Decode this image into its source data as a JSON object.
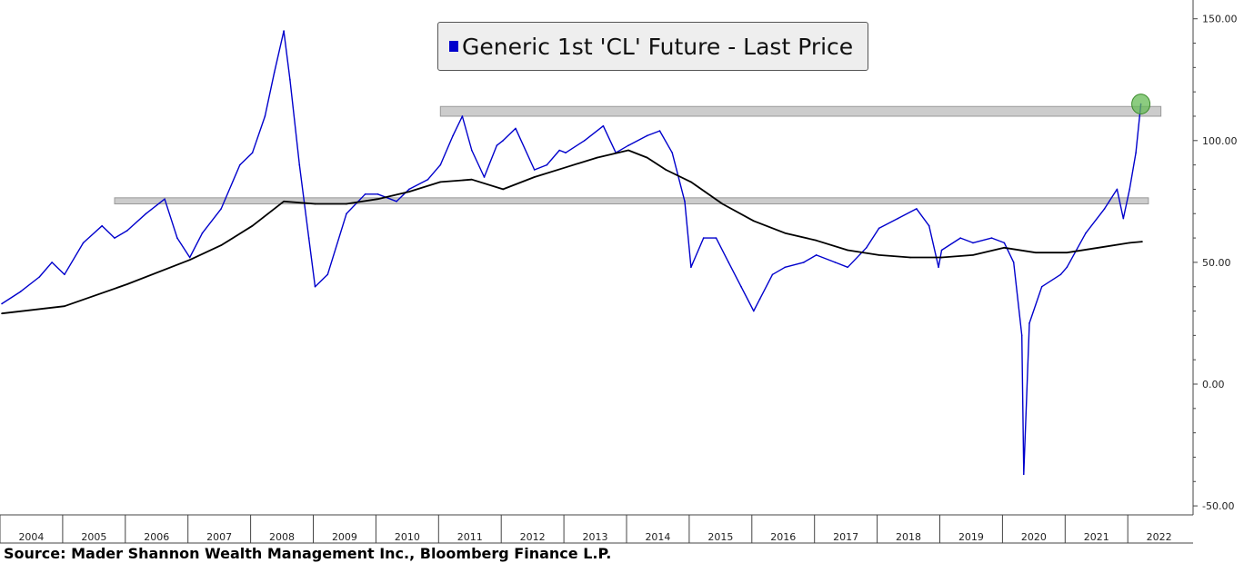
{
  "legend": {
    "label": "Generic 1st 'CL' Future - Last Price",
    "color": "#0000cc"
  },
  "source_text": "Source: Mader Shannon Wealth Management Inc., Bloomberg Finance L.P.",
  "chart_data": {
    "type": "line",
    "title": "",
    "xlabel": "",
    "ylabel": "",
    "ylim": [
      -50,
      150
    ],
    "xlim": [
      2004.0,
      2022.7
    ],
    "yticks": [
      {
        "value": 150,
        "label": "150.00"
      },
      {
        "value": 100,
        "label": "100.00"
      },
      {
        "value": 50,
        "label": "50.00"
      },
      {
        "value": 0,
        "label": "0.00"
      },
      {
        "value": -50,
        "label": "-50.00"
      }
    ],
    "xticks": [
      "2004",
      "2005",
      "2006",
      "2007",
      "2008",
      "2009",
      "2010",
      "2011",
      "2012",
      "2013",
      "2014",
      "2015",
      "2016",
      "2017",
      "2018",
      "2019",
      "2020",
      "2021",
      "2022"
    ],
    "grid": false,
    "legend_position": "top-center",
    "axis_position": "right",
    "series": [
      {
        "name": "Generic 1st 'CL' Future - Last Price",
        "color": "#0000cc",
        "x": [
          2004.0,
          2004.3,
          2004.6,
          2004.8,
          2005.0,
          2005.3,
          2005.6,
          2005.8,
          2006.0,
          2006.3,
          2006.6,
          2006.8,
          2007.0,
          2007.2,
          2007.5,
          2007.8,
          2008.0,
          2008.2,
          2008.35,
          2008.5,
          2008.6,
          2008.75,
          2008.9,
          2009.0,
          2009.2,
          2009.5,
          2009.8,
          2010.0,
          2010.3,
          2010.5,
          2010.8,
          2011.0,
          2011.2,
          2011.35,
          2011.5,
          2011.7,
          2011.9,
          2012.0,
          2012.2,
          2012.5,
          2012.7,
          2012.9,
          2013.0,
          2013.3,
          2013.6,
          2013.8,
          2014.0,
          2014.3,
          2014.5,
          2014.7,
          2014.9,
          2015.0,
          2015.2,
          2015.4,
          2015.6,
          2015.8,
          2016.0,
          2016.1,
          2016.3,
          2016.5,
          2016.8,
          2017.0,
          2017.3,
          2017.5,
          2017.8,
          2018.0,
          2018.3,
          2018.6,
          2018.8,
          2018.95,
          2019.0,
          2019.3,
          2019.5,
          2019.8,
          2020.0,
          2020.15,
          2020.28,
          2020.31,
          2020.4,
          2020.6,
          2020.9,
          2021.0,
          2021.3,
          2021.6,
          2021.8,
          2021.9,
          2022.0,
          2022.1,
          2022.18
        ],
        "values": [
          33,
          38,
          44,
          50,
          45,
          58,
          65,
          60,
          63,
          70,
          76,
          60,
          52,
          62,
          72,
          90,
          95,
          110,
          128,
          145,
          125,
          90,
          60,
          40,
          45,
          70,
          78,
          78,
          75,
          80,
          84,
          90,
          102,
          110,
          96,
          85,
          98,
          100,
          105,
          88,
          90,
          96,
          95,
          100,
          106,
          95,
          98,
          102,
          104,
          95,
          75,
          48,
          60,
          60,
          50,
          40,
          30,
          35,
          45,
          48,
          50,
          53,
          50,
          48,
          56,
          64,
          68,
          72,
          65,
          48,
          55,
          60,
          58,
          60,
          58,
          50,
          20,
          -37,
          25,
          40,
          45,
          48,
          62,
          72,
          80,
          68,
          80,
          95,
          115
        ]
      },
      {
        "name": "",
        "color": "#000000",
        "x": [
          2004.0,
          2005.0,
          2006.0,
          2007.0,
          2007.5,
          2008.0,
          2008.5,
          2009.0,
          2009.5,
          2010.0,
          2010.5,
          2011.0,
          2011.5,
          2012.0,
          2012.5,
          2013.0,
          2013.5,
          2014.0,
          2014.3,
          2014.6,
          2015.0,
          2015.5,
          2016.0,
          2016.5,
          2017.0,
          2017.5,
          2018.0,
          2018.5,
          2019.0,
          2019.5,
          2020.0,
          2020.5,
          2021.0,
          2021.5,
          2022.0,
          2022.2
        ],
        "values": [
          29,
          32,
          41,
          51,
          57,
          65,
          75,
          74,
          74,
          76,
          79,
          83,
          84,
          80,
          85,
          89,
          93,
          96,
          93,
          88,
          83,
          74,
          67,
          62,
          59,
          55,
          53,
          52,
          52,
          53,
          56,
          54,
          54,
          56,
          58,
          58.5
        ]
      }
    ],
    "annotations": [
      {
        "type": "band",
        "x": [
          2011.0,
          2022.5
        ],
        "y": [
          110,
          114
        ],
        "color": "#cccccc"
      },
      {
        "type": "band",
        "x": [
          2005.8,
          2022.3
        ],
        "y": [
          74,
          76.5
        ],
        "color": "#cccccc"
      },
      {
        "type": "circle",
        "x": 2022.18,
        "y": 115,
        "color": "#66bb55"
      }
    ]
  }
}
